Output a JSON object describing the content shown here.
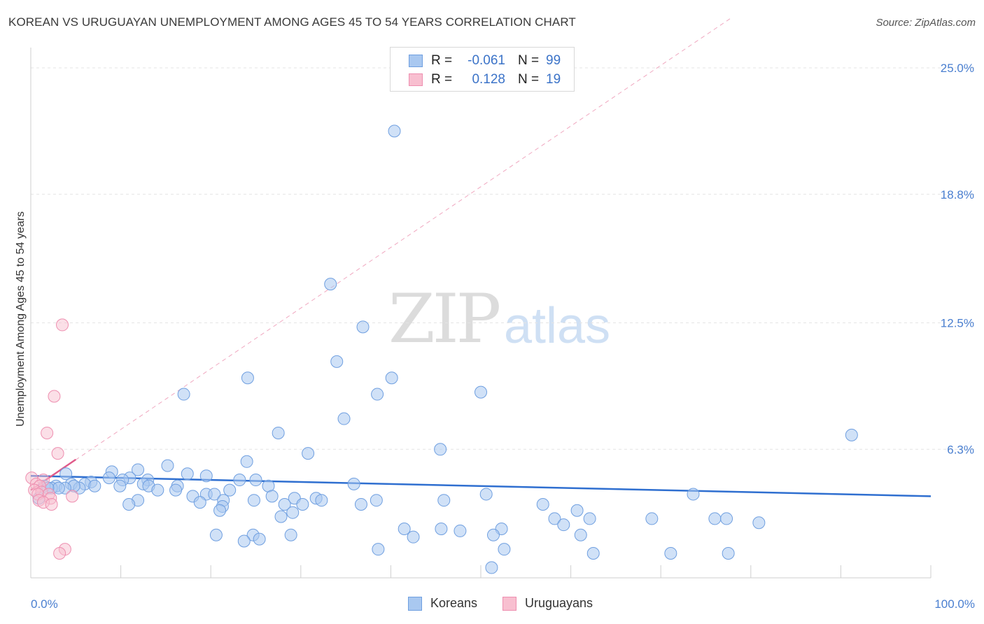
{
  "header": {
    "title": "KOREAN VS URUGUAYAN UNEMPLOYMENT AMONG AGES 45 TO 54 YEARS CORRELATION CHART",
    "source": "Source: ZipAtlas.com"
  },
  "watermark": {
    "zip": "ZIP",
    "atlas": "atlas"
  },
  "legend": {
    "rows": [
      {
        "r_label": "R =",
        "r_value": "-0.061",
        "n_label": "N =",
        "n_value": "99",
        "color": "#a9c8f0",
        "border": "#6f9fe0"
      },
      {
        "r_label": "R =",
        "r_value": "0.128",
        "n_label": "N =",
        "n_value": "19",
        "color": "#f8bfd0",
        "border": "#ee8fb0"
      }
    ]
  },
  "bottom_legend": {
    "koreans": "Koreans",
    "uruguayans": "Uruguayans"
  },
  "colors": {
    "korean_fill": "#a9c8f0",
    "korean_stroke": "#6f9fe0",
    "korean_line": "#2f6fd0",
    "uruguayan_fill": "#f8bfd0",
    "uruguayan_stroke": "#ee8fb0",
    "uruguayan_line": "#e05a8a",
    "axis_text": "#4a7fd0"
  },
  "chart_data": {
    "type": "scatter",
    "title": "KOREAN VS URUGUAYAN UNEMPLOYMENT AMONG AGES 45 TO 54 YEARS CORRELATION CHART",
    "xlabel": "",
    "ylabel": "Unemployment Among Ages 45 to 54 years",
    "xlim": [
      0,
      100
    ],
    "ylim": [
      0,
      25
    ],
    "x_tick_labels": [
      "0.0%",
      "100.0%"
    ],
    "y_ticks": [
      6.3,
      12.5,
      18.8,
      25.0
    ],
    "y_tick_labels": [
      "6.3%",
      "12.5%",
      "18.8%",
      "25.0%"
    ],
    "grid": true,
    "legend_position": "top-center",
    "series": [
      {
        "name": "Koreans",
        "trend": {
          "x": [
            0,
            100
          ],
          "y": [
            5.0,
            4.0
          ]
        },
        "points": [
          [
            40.4,
            21.9
          ],
          [
            33.3,
            14.4
          ],
          [
            36.9,
            12.3
          ],
          [
            34.0,
            10.6
          ],
          [
            24.1,
            9.8
          ],
          [
            40.1,
            9.8
          ],
          [
            17.0,
            9.0
          ],
          [
            38.5,
            9.0
          ],
          [
            50.0,
            9.1
          ],
          [
            34.8,
            7.8
          ],
          [
            27.5,
            7.1
          ],
          [
            45.5,
            6.3
          ],
          [
            91.2,
            7.0
          ],
          [
            30.8,
            6.1
          ],
          [
            24.0,
            5.7
          ],
          [
            15.2,
            5.5
          ],
          [
            11.9,
            5.3
          ],
          [
            9.0,
            5.2
          ],
          [
            17.4,
            5.1
          ],
          [
            3.9,
            5.1
          ],
          [
            19.5,
            5.0
          ],
          [
            8.7,
            4.9
          ],
          [
            11.0,
            4.9
          ],
          [
            13.0,
            4.8
          ],
          [
            23.2,
            4.8
          ],
          [
            25.0,
            4.8
          ],
          [
            10.2,
            4.8
          ],
          [
            6.7,
            4.7
          ],
          [
            4.5,
            4.6
          ],
          [
            6.0,
            4.6
          ],
          [
            35.9,
            4.6
          ],
          [
            12.5,
            4.6
          ],
          [
            7.1,
            4.5
          ],
          [
            9.9,
            4.5
          ],
          [
            16.3,
            4.5
          ],
          [
            13.1,
            4.5
          ],
          [
            5.4,
            4.4
          ],
          [
            1.5,
            4.5
          ],
          [
            2.8,
            4.5
          ],
          [
            4.8,
            4.5
          ],
          [
            22.1,
            4.3
          ],
          [
            26.4,
            4.5
          ],
          [
            14.1,
            4.3
          ],
          [
            3.8,
            4.4
          ],
          [
            16.1,
            4.3
          ],
          [
            2.3,
            4.4
          ],
          [
            3.1,
            4.4
          ],
          [
            1.9,
            4.4
          ],
          [
            18.0,
            4.0
          ],
          [
            19.5,
            4.1
          ],
          [
            20.4,
            4.1
          ],
          [
            26.8,
            4.0
          ],
          [
            29.3,
            3.9
          ],
          [
            31.7,
            3.9
          ],
          [
            32.3,
            3.8
          ],
          [
            38.4,
            3.8
          ],
          [
            11.9,
            3.8
          ],
          [
            45.9,
            3.8
          ],
          [
            21.4,
            3.8
          ],
          [
            18.8,
            3.7
          ],
          [
            24.8,
            3.8
          ],
          [
            50.6,
            4.1
          ],
          [
            73.6,
            4.1
          ],
          [
            0.9,
            3.9
          ],
          [
            10.9,
            3.6
          ],
          [
            21.3,
            3.5
          ],
          [
            28.2,
            3.6
          ],
          [
            30.2,
            3.6
          ],
          [
            36.7,
            3.6
          ],
          [
            56.9,
            3.6
          ],
          [
            60.7,
            3.3
          ],
          [
            29.1,
            3.2
          ],
          [
            21.0,
            3.3
          ],
          [
            27.8,
            3.0
          ],
          [
            58.2,
            2.9
          ],
          [
            76.0,
            2.9
          ],
          [
            77.3,
            2.9
          ],
          [
            59.2,
            2.6
          ],
          [
            62.1,
            2.9
          ],
          [
            69.0,
            2.9
          ],
          [
            45.6,
            2.4
          ],
          [
            41.5,
            2.4
          ],
          [
            80.9,
            2.7
          ],
          [
            52.3,
            2.4
          ],
          [
            42.5,
            2.0
          ],
          [
            47.7,
            2.3
          ],
          [
            61.1,
            2.1
          ],
          [
            51.4,
            2.1
          ],
          [
            28.9,
            2.1
          ],
          [
            24.7,
            2.1
          ],
          [
            20.6,
            2.1
          ],
          [
            25.4,
            1.9
          ],
          [
            38.6,
            1.4
          ],
          [
            52.6,
            1.4
          ],
          [
            62.5,
            1.2
          ],
          [
            71.1,
            1.2
          ],
          [
            77.5,
            1.2
          ],
          [
            23.7,
            1.8
          ],
          [
            51.2,
            0.5
          ]
        ]
      },
      {
        "name": "Uruguayans",
        "trend": {
          "x": [
            0,
            5
          ],
          "y": [
            4.3,
            5.8
          ]
        },
        "trend_extended": {
          "x": [
            0,
            78
          ],
          "y": [
            4.3,
            27.5
          ]
        },
        "points": [
          [
            3.5,
            12.4
          ],
          [
            2.6,
            8.9
          ],
          [
            1.8,
            7.1
          ],
          [
            3.0,
            6.1
          ],
          [
            0.1,
            4.9
          ],
          [
            1.4,
            4.8
          ],
          [
            0.6,
            4.6
          ],
          [
            1.0,
            4.5
          ],
          [
            0.4,
            4.3
          ],
          [
            1.2,
            4.2
          ],
          [
            0.8,
            4.1
          ],
          [
            2.0,
            4.1
          ],
          [
            4.6,
            4.0
          ],
          [
            2.2,
            3.9
          ],
          [
            0.9,
            3.8
          ],
          [
            1.4,
            3.7
          ],
          [
            2.3,
            3.6
          ],
          [
            3.8,
            1.4
          ],
          [
            3.2,
            1.2
          ]
        ]
      }
    ]
  }
}
